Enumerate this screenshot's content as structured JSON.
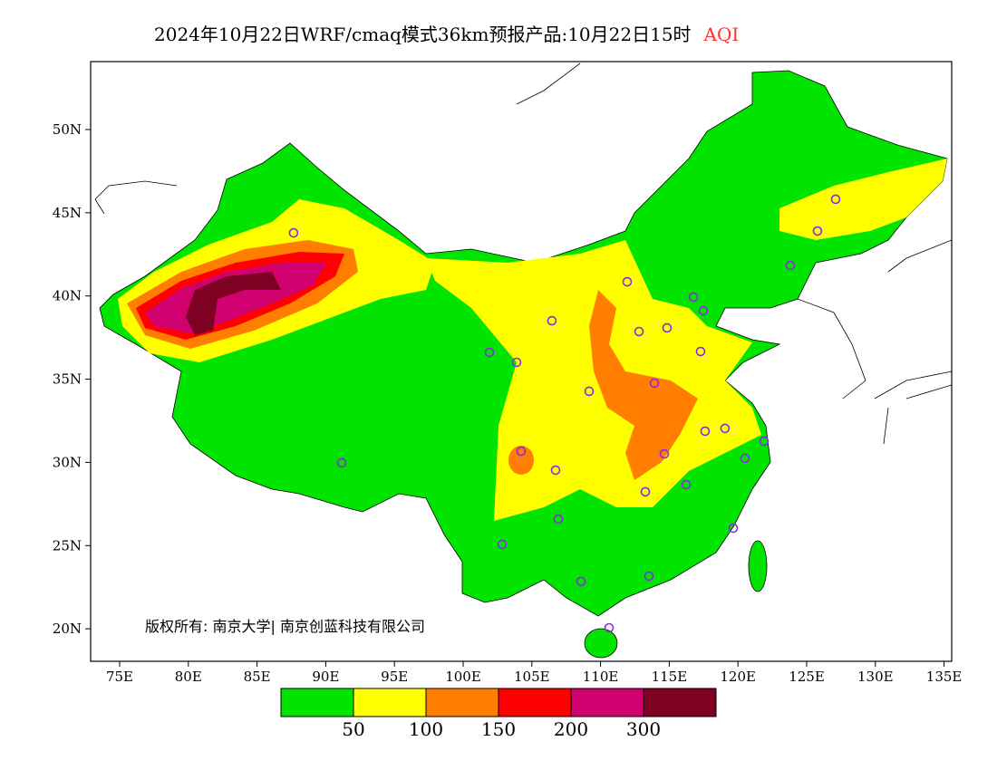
{
  "title": {
    "main": "2024年10月22日WRF/cmaq模式36km预报产品:10月22日15时",
    "variable": "AQI"
  },
  "copyright": "版权所有: 南京大学| 南京创蓝科技有限公司",
  "axes": {
    "lon_ticks": [
      "75E",
      "80E",
      "85E",
      "90E",
      "95E",
      "100E",
      "105E",
      "110E",
      "115E",
      "120E",
      "125E",
      "130E",
      "135E"
    ],
    "lat_ticks": [
      "50N",
      "45N",
      "40N",
      "35N",
      "30N",
      "25N",
      "20N"
    ]
  },
  "legend": {
    "colors": [
      "#00e400",
      "#ffff00",
      "#ff7e00",
      "#ff0000",
      "#d0006e",
      "#7e0023"
    ],
    "labels": [
      "50",
      "100",
      "150",
      "200",
      "300"
    ]
  },
  "stations": [
    [
      87.66,
      43.79
    ],
    [
      101.91,
      36.61
    ],
    [
      103.89,
      36.01
    ],
    [
      91.16,
      29.97
    ],
    [
      106.46,
      38.51
    ],
    [
      111.94,
      40.85
    ],
    [
      116.76,
      39.93
    ],
    [
      117.48,
      39.11
    ],
    [
      112.8,
      37.86
    ],
    [
      114.84,
      38.08
    ],
    [
      117.28,
      36.66
    ],
    [
      113.92,
      34.76
    ],
    [
      109.17,
      34.27
    ],
    [
      117.61,
      31.87
    ],
    [
      119.06,
      32.04
    ],
    [
      114.64,
      30.51
    ],
    [
      104.22,
      30.67
    ],
    [
      106.73,
      29.53
    ],
    [
      116.23,
      28.66
    ],
    [
      113.26,
      28.23
    ],
    [
      120.51,
      30.24
    ],
    [
      121.9,
      31.27
    ],
    [
      106.93,
      26.59
    ],
    [
      102.84,
      25.07
    ],
    [
      119.66,
      26.05
    ],
    [
      108.58,
      22.84
    ],
    [
      113.52,
      23.16
    ],
    [
      110.62,
      20.06
    ],
    [
      123.81,
      41.83
    ],
    [
      125.79,
      43.9
    ],
    [
      127.11,
      45.81
    ]
  ]
}
